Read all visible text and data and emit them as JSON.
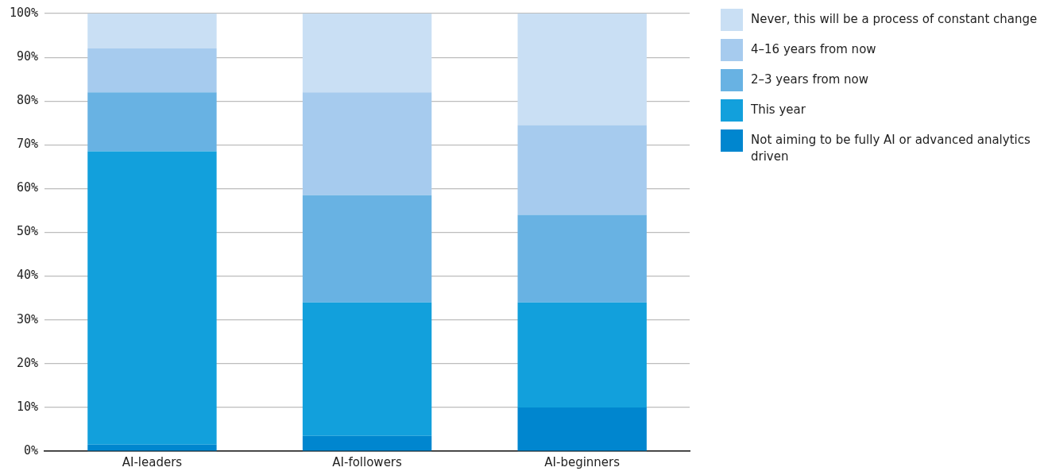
{
  "chart_data": {
    "type": "bar",
    "stacked": true,
    "categories": [
      "AI-leaders",
      "AI-followers",
      "AI-beginners"
    ],
    "series": [
      {
        "name": "Not aiming to be fully AI or advanced analytics driven",
        "color": "#0086cf",
        "values": [
          1.5,
          3.5,
          10
        ]
      },
      {
        "name": "This year",
        "color": "#12a0dc",
        "values": [
          67,
          30.5,
          24
        ]
      },
      {
        "name": "2–3 years from now",
        "color": "#68b2e3",
        "values": [
          13.5,
          24.5,
          20
        ]
      },
      {
        "name": "4–16  years from now",
        "color": "#a6cbee",
        "values": [
          10,
          23.5,
          20.5
        ]
      },
      {
        "name": "Never, this will be a process of constant change",
        "color": "#c9dff4",
        "values": [
          8,
          18,
          25.5
        ]
      }
    ],
    "ylim": [
      0,
      100
    ],
    "yticks": [
      {
        "value": 0,
        "label": "0%"
      },
      {
        "value": 10,
        "label": "10%"
      },
      {
        "value": 20,
        "label": "20%"
      },
      {
        "value": 30,
        "label": "30%"
      },
      {
        "value": 40,
        "label": "40%"
      },
      {
        "value": 50,
        "label": "50%"
      },
      {
        "value": 60,
        "label": "60%"
      },
      {
        "value": 70,
        "label": "70%"
      },
      {
        "value": 80,
        "label": "80%"
      },
      {
        "value": 90,
        "label": "90%"
      },
      {
        "value": 100,
        "label": "100%"
      }
    ],
    "grid": "y",
    "legend": "right"
  }
}
